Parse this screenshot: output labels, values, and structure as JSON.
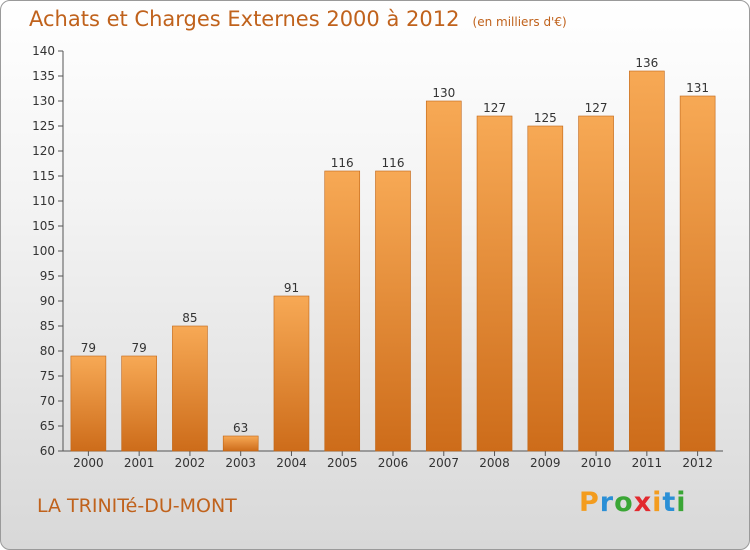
{
  "header": {
    "title": "Achats et Charges Externes 2000 à 2012",
    "unit": "(en milliers d'€)"
  },
  "footer": {
    "location": "LA TRINITé-DU-MONT",
    "brand": "Proxiti",
    "brand_colors": [
      "#f39c1e",
      "#2a8fd6",
      "#3aa635",
      "#e2292e",
      "#f39c1e",
      "#2a8fd6",
      "#3aa635"
    ]
  },
  "colors": {
    "bar_light": "#f7a955",
    "bar_dark": "#cd6c1a",
    "text_accent": "#c0621c"
  },
  "chart_data": {
    "type": "bar",
    "categories": [
      "2000",
      "2001",
      "2002",
      "2003",
      "2004",
      "2005",
      "2006",
      "2007",
      "2008",
      "2009",
      "2010",
      "2011",
      "2012"
    ],
    "values": [
      79,
      79,
      85,
      63,
      91,
      116,
      116,
      130,
      127,
      125,
      127,
      136,
      131
    ],
    "title": "Achats et Charges Externes 2000 à 2012",
    "xlabel": "",
    "ylabel": "",
    "ylim": [
      60,
      140
    ],
    "yticks": [
      60,
      65,
      70,
      75,
      80,
      85,
      90,
      95,
      100,
      105,
      110,
      115,
      120,
      125,
      130,
      135,
      140
    ],
    "grid": false,
    "legend": "none"
  }
}
